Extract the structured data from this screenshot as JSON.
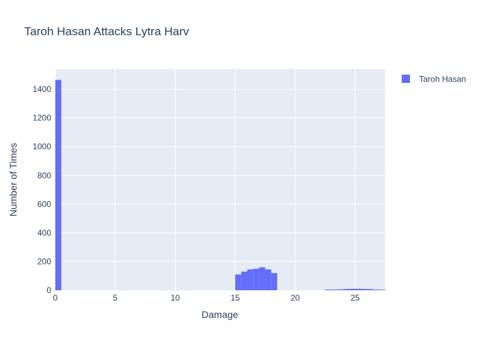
{
  "chart_data": {
    "type": "bar",
    "title": "Taroh Hasan Attacks Lytra Harv",
    "xlabel": "Damage",
    "ylabel": "Number of Times",
    "xlim": [
      0,
      27.5
    ],
    "ylim": [
      0,
      1540
    ],
    "xticks": [
      0,
      5,
      10,
      15,
      20,
      25
    ],
    "yticks": [
      0,
      200,
      400,
      600,
      800,
      1000,
      1200,
      1400
    ],
    "grid": true,
    "legend_position": "top-right",
    "colors": {
      "bar": "#636efa",
      "plot_background": "#e5ecf6",
      "grid": "#ffffff",
      "text": "#2a3f5f"
    },
    "bin_width": 0.5,
    "series": [
      {
        "name": "Taroh Hasan",
        "bins": [
          {
            "x0": 0,
            "x1": 0.5,
            "y": 1465
          },
          {
            "x0": 15,
            "x1": 15.5,
            "y": 110
          },
          {
            "x0": 15.5,
            "x1": 16,
            "y": 130
          },
          {
            "x0": 16,
            "x1": 16.5,
            "y": 145
          },
          {
            "x0": 16.5,
            "x1": 17,
            "y": 150
          },
          {
            "x0": 17,
            "x1": 17.5,
            "y": 160
          },
          {
            "x0": 17.5,
            "x1": 18,
            "y": 145
          },
          {
            "x0": 18,
            "x1": 18.5,
            "y": 120
          },
          {
            "x0": 22.5,
            "x1": 23,
            "y": 5
          },
          {
            "x0": 23,
            "x1": 23.5,
            "y": 5
          },
          {
            "x0": 23.5,
            "x1": 24,
            "y": 6
          },
          {
            "x0": 24,
            "x1": 24.5,
            "y": 9
          },
          {
            "x0": 24.5,
            "x1": 25,
            "y": 10
          },
          {
            "x0": 25,
            "x1": 25.5,
            "y": 10
          },
          {
            "x0": 25.5,
            "x1": 26,
            "y": 9
          },
          {
            "x0": 26,
            "x1": 26.5,
            "y": 8
          },
          {
            "x0": 26.5,
            "x1": 27,
            "y": 5
          },
          {
            "x0": 27,
            "x1": 27.5,
            "y": 4
          }
        ]
      }
    ]
  }
}
